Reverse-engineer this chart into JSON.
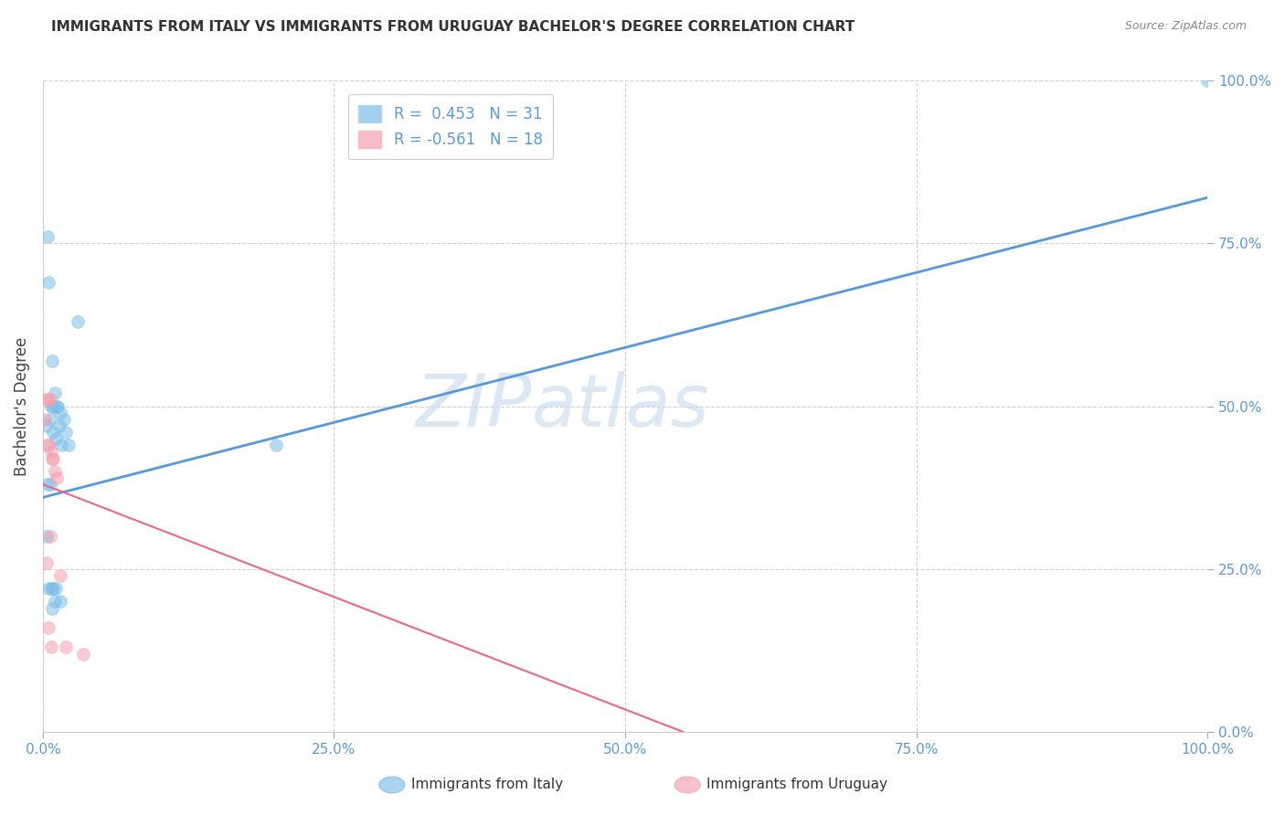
{
  "title": "IMMIGRANTS FROM ITALY VS IMMIGRANTS FROM URUGUAY BACHELOR'S DEGREE CORRELATION CHART",
  "source": "Source: ZipAtlas.com",
  "ylabel": "Bachelor's Degree",
  "legend_italy": "R =  0.453   N = 31",
  "legend_uruguay": "R = -0.561   N = 18",
  "watermark_zip": "ZIP",
  "watermark_atlas": "atlas",
  "blue_color": "#7bbde8",
  "pink_color": "#f4a0b0",
  "line_blue": "#5599dd",
  "line_pink": "#ee6688",
  "italy_x": [
    0.3,
    0.6,
    0.9,
    1.1,
    1.6,
    2.2,
    0.5,
    0.8,
    1.0,
    1.3,
    1.5,
    2.0,
    0.4,
    0.7,
    0.9,
    1.2,
    1.4,
    1.8,
    0.3,
    0.5,
    0.7,
    0.9,
    1.1,
    0.4,
    0.6,
    0.8,
    1.0,
    1.5,
    20.0,
    3.0,
    100.0
  ],
  "italy_y": [
    47,
    48,
    46,
    45,
    44,
    44,
    69,
    57,
    52,
    50,
    49,
    46,
    76,
    50,
    50,
    50,
    47,
    48,
    30,
    22,
    22,
    22,
    22,
    38,
    38,
    19,
    20,
    20,
    44,
    63,
    100
  ],
  "uruguay_x": [
    0.2,
    0.4,
    0.5,
    0.7,
    0.8,
    1.0,
    1.2,
    0.3,
    0.4,
    0.6,
    0.9,
    1.5,
    3.5,
    0.3,
    0.5,
    0.7,
    0.6,
    2.0
  ],
  "uruguay_y": [
    48,
    44,
    44,
    43,
    42,
    40,
    39,
    51,
    51,
    51,
    42,
    24,
    12,
    26,
    16,
    13,
    30,
    13
  ],
  "italy_line_x": [
    0,
    100
  ],
  "italy_line_y": [
    36,
    82
  ],
  "uruguay_line_x": [
    0,
    55
  ],
  "uruguay_line_y": [
    38,
    0
  ],
  "xlim": [
    0,
    100
  ],
  "ylim": [
    0,
    100
  ],
  "marker_size": 100,
  "marker_alpha": 0.55,
  "title_fontsize": 11,
  "source_fontsize": 9,
  "tick_label_color": "#5b9bd5",
  "tick_label_size": 11,
  "grid_color": "#cccccc",
  "background_color": "#ffffff"
}
